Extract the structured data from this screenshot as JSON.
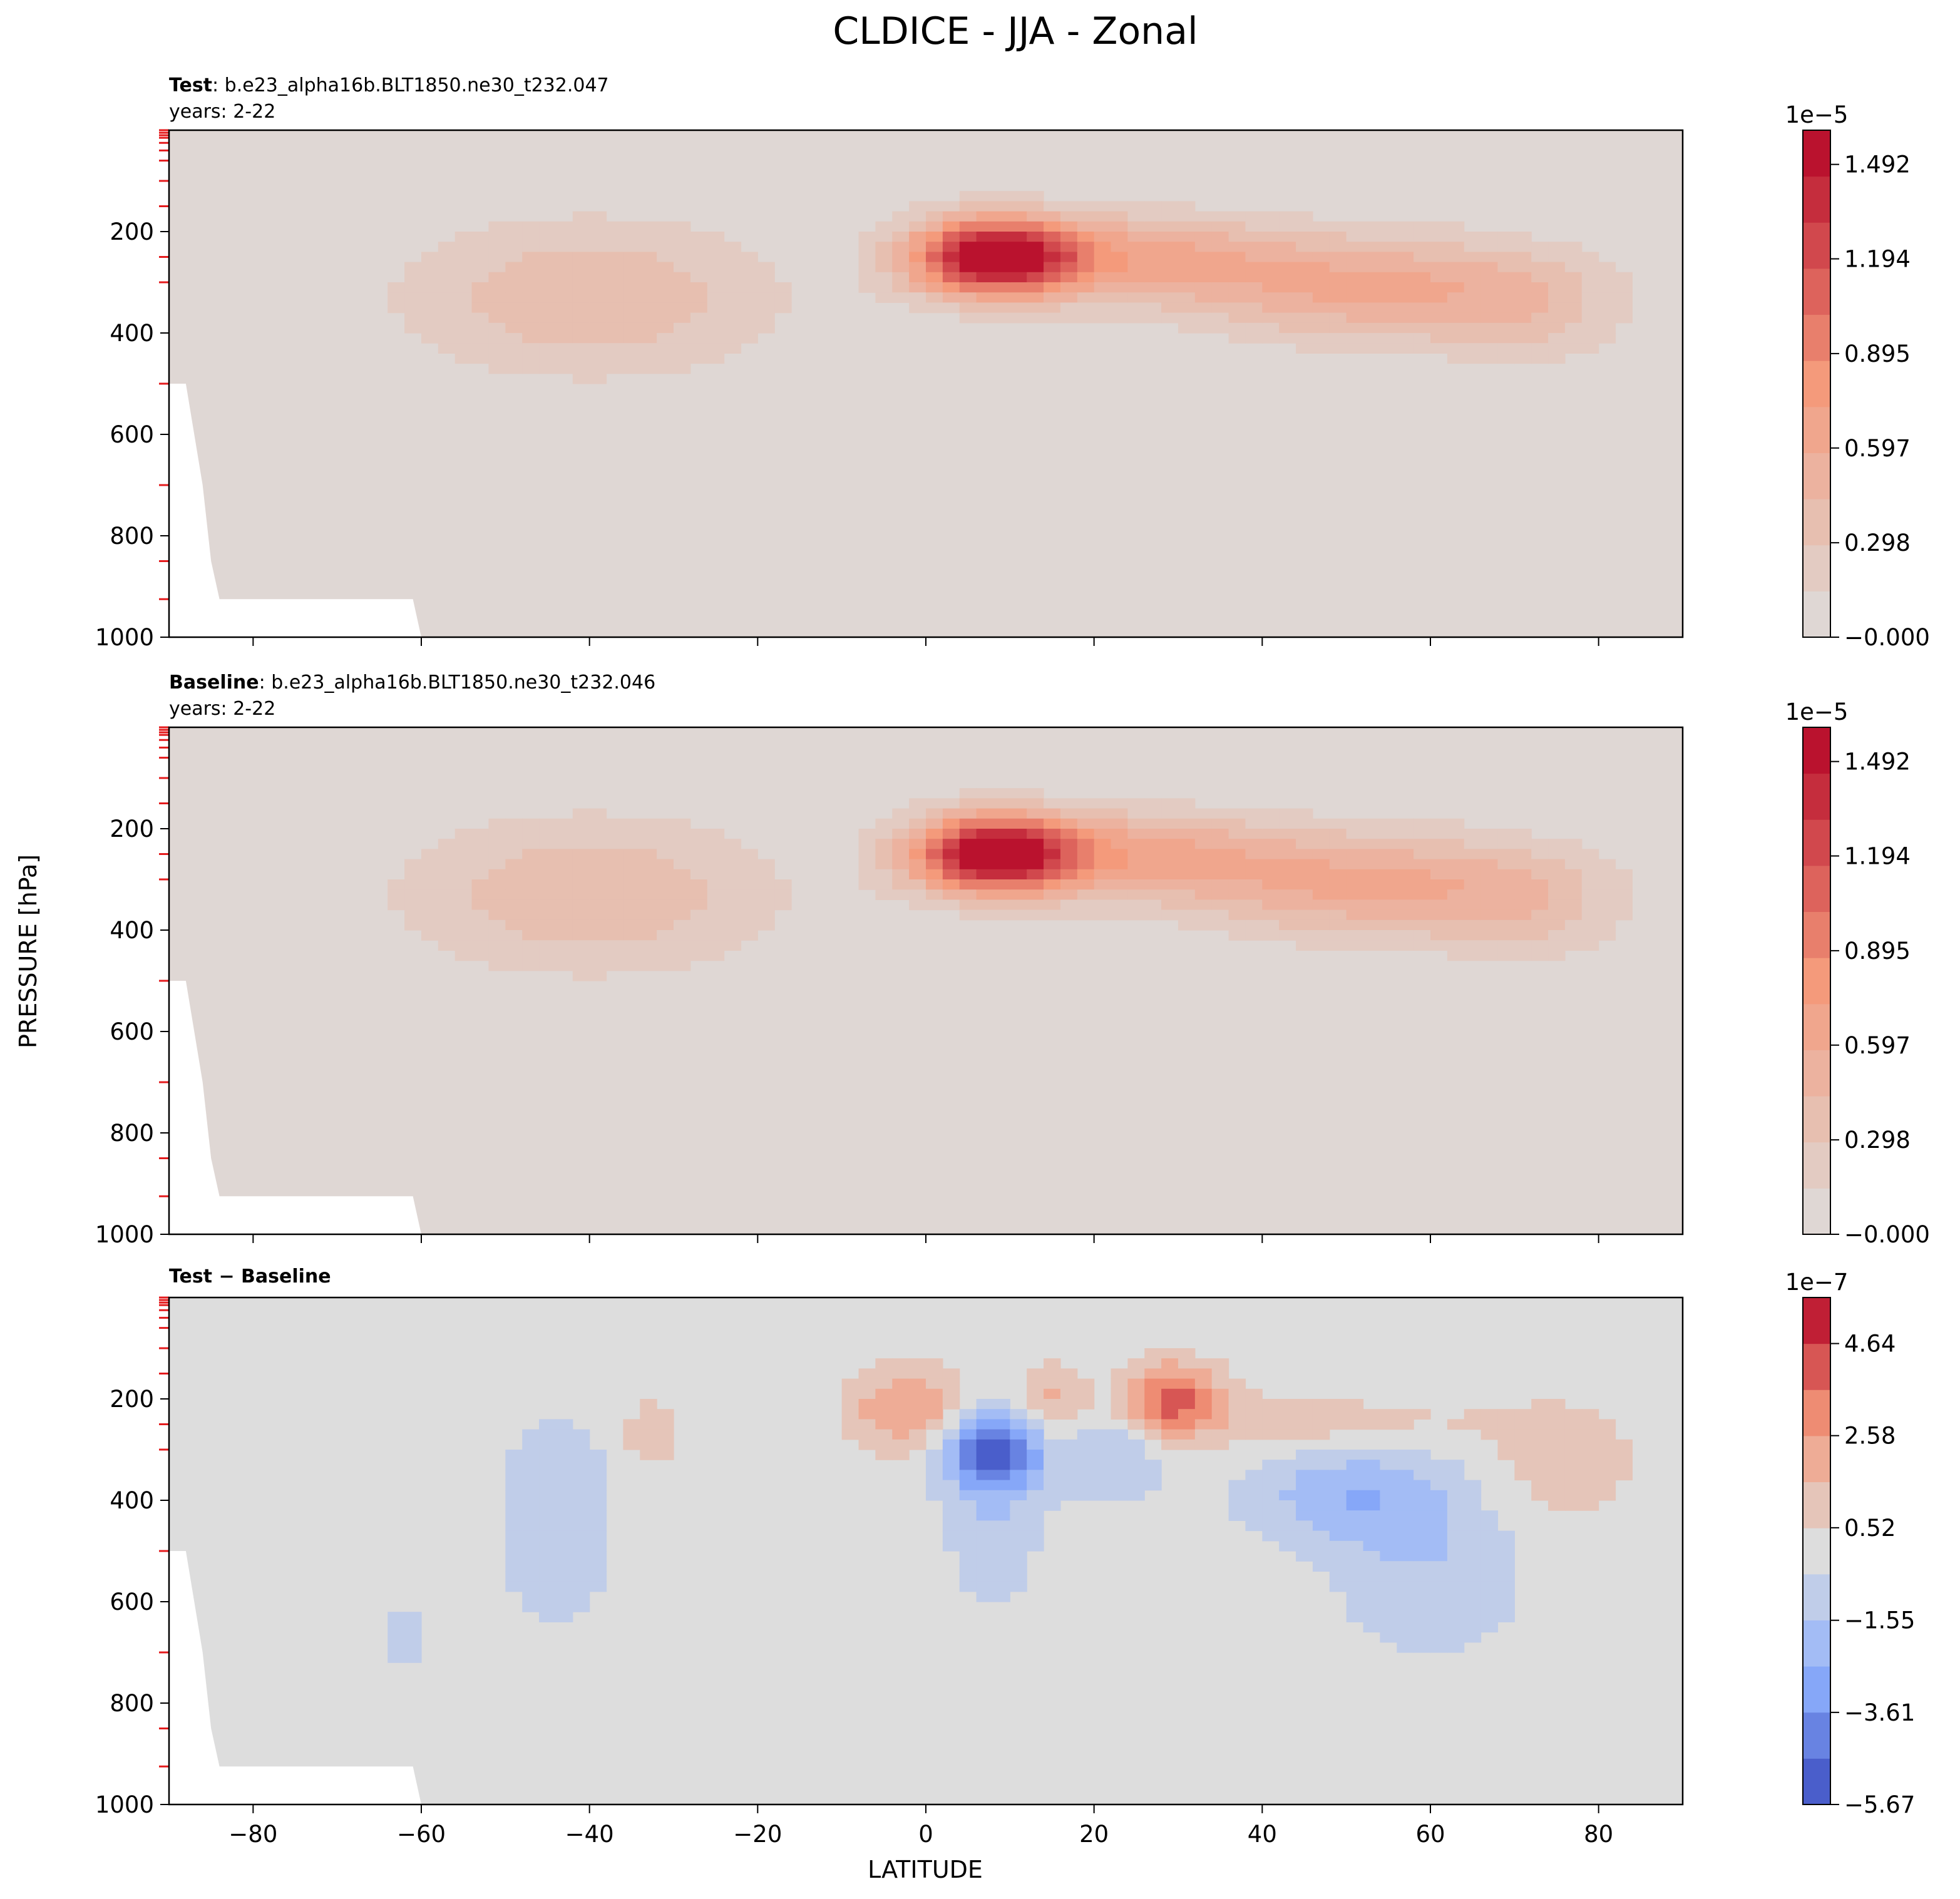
{
  "figure": {
    "title": "CLDICE - JJA - Zonal",
    "ylabel": "PRESSURE [hPa]",
    "xlabel": "LATITUDE"
  },
  "chart_data": [
    {
      "type": "heatmap",
      "title_bold": "Test",
      "title_rest": ": b.e23_alpha16b.BLT1850.ne30_t232.047",
      "subtitle": "years: 2-22",
      "xlim": [
        -90,
        90
      ],
      "ylim": [
        1000,
        0
      ],
      "xticks": [
        -80,
        -60,
        -40,
        -20,
        0,
        20,
        40,
        60,
        80
      ],
      "yticks": [
        200,
        400,
        600,
        800,
        1000
      ],
      "colorbar": {
        "exponent": "1e−5",
        "range": [
          0,
          1.6
        ],
        "levels": 11,
        "tick_values": [
          0,
          0.298,
          0.597,
          0.895,
          1.194,
          1.492
        ],
        "tick_labels": [
          "−0.000",
          "0.298",
          "0.597",
          "0.895",
          "1.194",
          "1.492"
        ]
      },
      "features": [
        {
          "lat": -40,
          "p": 330,
          "slat": 16,
          "sp": 110,
          "amp": 0.42
        },
        {
          "lat": 8,
          "p": 250,
          "slat": 7,
          "sp": 55,
          "amp": 1.58
        },
        {
          "lat": 25,
          "p": 250,
          "slat": 12,
          "sp": 60,
          "amp": 0.55
        },
        {
          "lat": 53,
          "p": 310,
          "slat": 16,
          "sp": 75,
          "amp": 0.6
        },
        {
          "lat": 72,
          "p": 370,
          "slat": 8,
          "sp": 80,
          "amp": 0.22
        }
      ]
    },
    {
      "type": "heatmap",
      "title_bold": "Baseline",
      "title_rest": ": b.e23_alpha16b.BLT1850.ne30_t232.046",
      "subtitle": "years: 2-22",
      "xlim": [
        -90,
        90
      ],
      "ylim": [
        1000,
        0
      ],
      "xticks": [
        -80,
        -60,
        -40,
        -20,
        0,
        20,
        40,
        60,
        80
      ],
      "yticks": [
        200,
        400,
        600,
        800,
        1000
      ],
      "colorbar": {
        "exponent": "1e−5",
        "range": [
          0,
          1.6
        ],
        "levels": 11,
        "tick_values": [
          0,
          0.298,
          0.597,
          0.895,
          1.194,
          1.492
        ],
        "tick_labels": [
          "−0.000",
          "0.298",
          "0.597",
          "0.895",
          "1.194",
          "1.492"
        ]
      },
      "features": [
        {
          "lat": -40,
          "p": 330,
          "slat": 16,
          "sp": 110,
          "amp": 0.42
        },
        {
          "lat": 8,
          "p": 250,
          "slat": 7,
          "sp": 55,
          "amp": 1.56
        },
        {
          "lat": 25,
          "p": 250,
          "slat": 12,
          "sp": 60,
          "amp": 0.55
        },
        {
          "lat": 53,
          "p": 310,
          "slat": 16,
          "sp": 75,
          "amp": 0.6
        },
        {
          "lat": 72,
          "p": 370,
          "slat": 8,
          "sp": 80,
          "amp": 0.22
        }
      ]
    },
    {
      "type": "heatmap",
      "title_bold": "Test − Baseline",
      "title_rest": "",
      "subtitle": "",
      "xlim": [
        -90,
        90
      ],
      "ylim": [
        1000,
        0
      ],
      "xticks": [
        -80,
        -60,
        -40,
        -20,
        0,
        20,
        40,
        60,
        80
      ],
      "yticks": [
        200,
        400,
        600,
        800,
        1000
      ],
      "colorbar": {
        "exponent": "1e−7",
        "range": [
          -5.67,
          5.67
        ],
        "levels": 11,
        "tick_values": [
          -5.67,
          -3.61,
          -1.55,
          0.52,
          2.58,
          4.64
        ],
        "tick_labels": [
          "−5.67",
          "−3.61",
          "−1.55",
          "0.52",
          "2.58",
          "4.64"
        ]
      },
      "features": [
        {
          "lat": -2,
          "p": 220,
          "slat": 5,
          "sp": 60,
          "amp": 2.6
        },
        {
          "lat": 8,
          "p": 300,
          "slat": 4,
          "sp": 55,
          "amp": -5.2
        },
        {
          "lat": 8,
          "p": 430,
          "slat": 4,
          "sp": 130,
          "amp": -1.3
        },
        {
          "lat": 15,
          "p": 210,
          "slat": 3,
          "sp": 55,
          "amp": 2.0
        },
        {
          "lat": 22,
          "p": 300,
          "slat": 5,
          "sp": 70,
          "amp": -1.6
        },
        {
          "lat": 29,
          "p": 200,
          "slat": 4,
          "sp": 50,
          "amp": 4.2
        },
        {
          "lat": 45,
          "p": 250,
          "slat": 15,
          "sp": 40,
          "amp": 1.2
        },
        {
          "lat": 50,
          "p": 390,
          "slat": 8,
          "sp": 70,
          "amp": -2.2
        },
        {
          "lat": 60,
          "p": 520,
          "slat": 8,
          "sp": 130,
          "amp": -1.4
        },
        {
          "lat": 75,
          "p": 330,
          "slat": 7,
          "sp": 90,
          "amp": 1.1
        },
        {
          "lat": -44,
          "p": 440,
          "slat": 5,
          "sp": 150,
          "amp": -1.3
        },
        {
          "lat": -33,
          "p": 270,
          "slat": 2,
          "sp": 45,
          "amp": 1.4
        },
        {
          "lat": -62,
          "p": 670,
          "slat": 2,
          "sp": 35,
          "amp": -1.2
        }
      ]
    }
  ]
}
